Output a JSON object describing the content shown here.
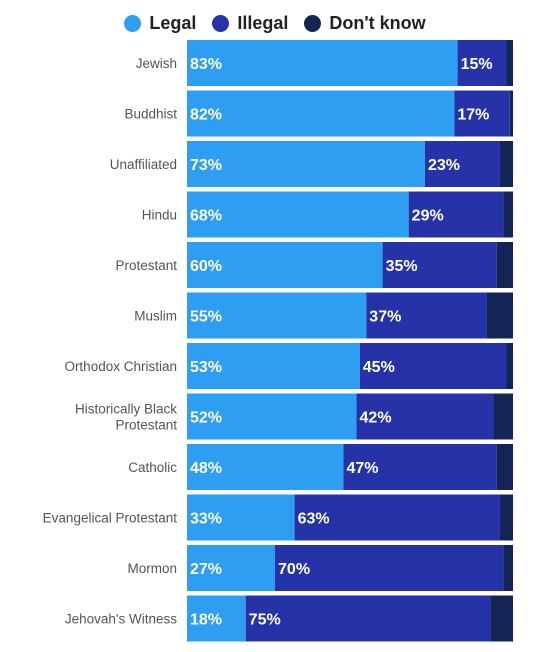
{
  "chart_data": {
    "type": "bar",
    "orientation": "horizontal",
    "stacked": true,
    "xlim": [
      0,
      100
    ],
    "legend_position": "top",
    "categories": [
      [
        "Jewish"
      ],
      [
        "Buddhist"
      ],
      [
        "Unaffiliated"
      ],
      [
        "Hindu"
      ],
      [
        "Protestant"
      ],
      [
        "Muslim"
      ],
      [
        "Orthodox Christian"
      ],
      [
        "Historically Black",
        "Protestant"
      ],
      [
        "Catholic"
      ],
      [
        "Evangelical Protestant"
      ],
      [
        "Mormon"
      ],
      [
        "Jehovah's Witness"
      ]
    ],
    "series": [
      {
        "name": "Legal",
        "color": "#2e9ef2",
        "values": [
          83,
          82,
          73,
          68,
          60,
          55,
          53,
          52,
          48,
          33,
          27,
          18
        ],
        "labels": [
          "83%",
          "82%",
          "73%",
          "68%",
          "60%",
          "55%",
          "53%",
          "52%",
          "48%",
          "33%",
          "27%",
          "18%"
        ]
      },
      {
        "name": "Illegal",
        "color": "#2633a8",
        "values": [
          15,
          17,
          23,
          29,
          35,
          37,
          45,
          42,
          47,
          63,
          70,
          75
        ],
        "labels": [
          "15%",
          "17%",
          "23%",
          "29%",
          "35%",
          "37%",
          "45%",
          "42%",
          "47%",
          "63%",
          "70%",
          "75%"
        ]
      },
      {
        "name": "Don't know",
        "color": "#142454",
        "values": [
          2,
          1,
          4,
          3,
          5,
          8,
          2,
          6,
          5,
          4,
          3,
          7
        ],
        "labels": [
          "",
          "",
          "",
          "",
          "",
          "",
          "",
          "",
          "",
          "",
          "",
          ""
        ]
      }
    ]
  }
}
